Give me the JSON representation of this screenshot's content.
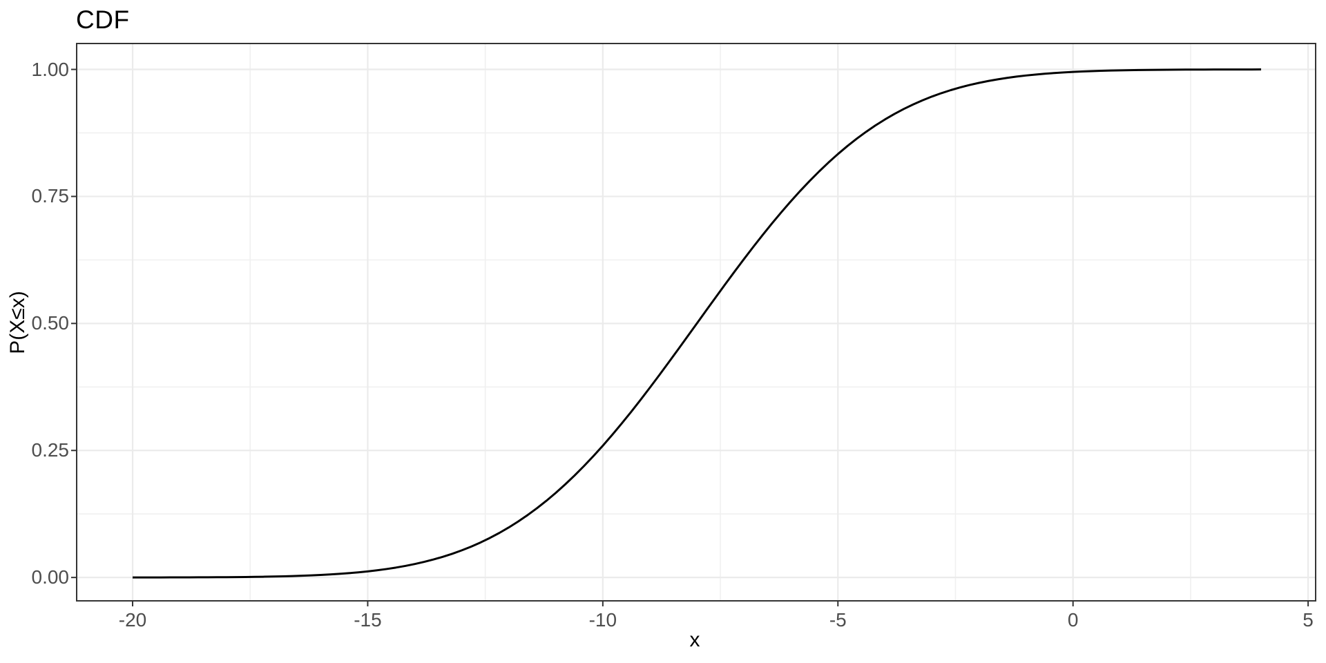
{
  "title": "CDF",
  "chart_data": {
    "type": "line",
    "title": "CDF",
    "xlabel": "x",
    "ylabel": "P(X≤x)",
    "legend_position": "none",
    "grid": "major and minor, light gray on white panel",
    "x_ticks": {
      "values": [
        -20,
        -15,
        -10,
        -5,
        0,
        5
      ],
      "labels": [
        "-20",
        "-15",
        "-10",
        "-5",
        "0",
        "5"
      ]
    },
    "y_ticks": {
      "values": [
        0,
        0.25,
        0.5,
        0.75,
        1
      ],
      "labels": [
        "0.00",
        "0.25",
        "0.50",
        "0.75",
        "1.00"
      ]
    },
    "x_minor_ticks": [
      -17.5,
      -12.5,
      -7.5,
      -2.5,
      2.5
    ],
    "y_minor_ticks": [
      0.125,
      0.375,
      0.625,
      0.875
    ],
    "xlim": [
      -21.19,
      5.16
    ],
    "ylim": [
      -0.046,
      1.051
    ],
    "x_data_range": [
      -20,
      4
    ],
    "curve_fit": {
      "distribution": "normal_cdf",
      "mean": -8,
      "sd": 3.1
    },
    "series": [
      {
        "name": "cdf-curve",
        "color": "#000000",
        "width": 3,
        "x": [
          -20,
          -19,
          -18,
          -17,
          -16,
          -15,
          -14,
          -13,
          -12,
          -11,
          -10,
          -9,
          -8,
          -7,
          -6,
          -5,
          -4,
          -3,
          -2,
          -1,
          0,
          1,
          2,
          3,
          4
        ],
        "y": [
          0.0001,
          0.0002,
          0.0006,
          0.0019,
          0.0049,
          0.012,
          0.0265,
          0.0534,
          0.0985,
          0.1666,
          0.2594,
          0.3735,
          0.5,
          0.6265,
          0.7406,
          0.8334,
          0.9015,
          0.9466,
          0.9735,
          0.988,
          0.9951,
          0.9981,
          0.9994,
          0.9998,
          0.9999
        ]
      }
    ],
    "colors": {
      "panel_border": "#333333",
      "grid_major": "#EBEBEB",
      "grid_minor": "#F0F0F0",
      "tick_mark": "#333333",
      "tick_label": "#4D4D4D",
      "axis_title": "#000000",
      "plot_title": "#000000",
      "background": "#FFFFFF"
    }
  }
}
